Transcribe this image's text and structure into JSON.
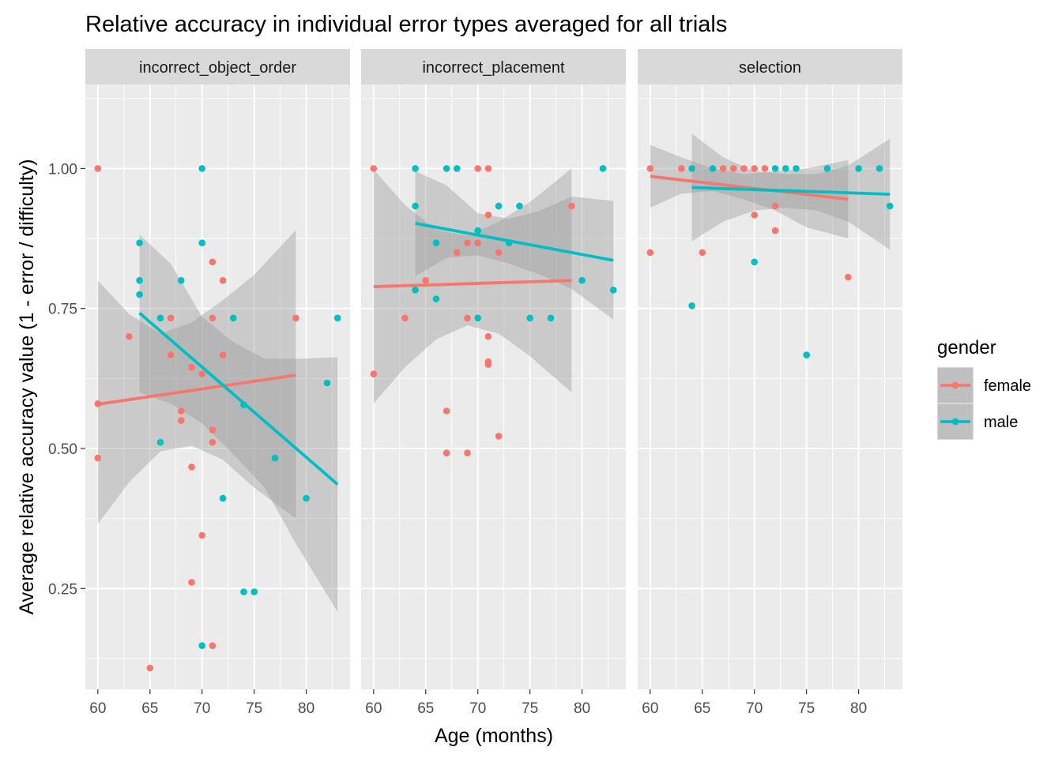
{
  "chart_data": {
    "type": "scatter",
    "title": "Relative accuracy in individual error types averaged for all trials",
    "xlabel": "Age (months)",
    "ylabel": "Average relative accuracy value (1 - error / difficulty)",
    "xlim": [
      58.8,
      84.2
    ],
    "ylim": [
      0.07,
      1.15
    ],
    "xticks": [
      60,
      65,
      70,
      75,
      80
    ],
    "yticks": [
      0.25,
      0.5,
      0.75,
      1.0
    ],
    "ytick_labels": [
      "0.25",
      "0.50",
      "0.75",
      "1.00"
    ],
    "grid": true,
    "legend": {
      "title": "gender",
      "position": "right",
      "items": [
        {
          "name": "female",
          "color": "#F8766D"
        },
        {
          "name": "male",
          "color": "#00BFC4"
        }
      ]
    },
    "colors": {
      "female": "#F8766D",
      "male": "#00BFC4",
      "panel_bg": "#EBEBEB",
      "strip_bg": "#D9D9D9",
      "ribbon": "#999999"
    },
    "facets": [
      {
        "name": "incorrect_object_order",
        "series": [
          {
            "name": "female",
            "points": [
              [
                60,
                1.0
              ],
              [
                60,
                0.58
              ],
              [
                60,
                0.483
              ],
              [
                63,
                0.7
              ],
              [
                65,
                0.108
              ],
              [
                67,
                0.733
              ],
              [
                67,
                0.667
              ],
              [
                68,
                0.567
              ],
              [
                68,
                0.55
              ],
              [
                69,
                0.645
              ],
              [
                69,
                0.467
              ],
              [
                69,
                0.261
              ],
              [
                70,
                0.633
              ],
              [
                70,
                0.345
              ],
              [
                71,
                0.833
              ],
              [
                71,
                0.733
              ],
              [
                71,
                0.533
              ],
              [
                71,
                0.511
              ],
              [
                71,
                0.148
              ],
              [
                72,
                0.8
              ],
              [
                72,
                0.667
              ],
              [
                79,
                0.733
              ]
            ],
            "fit": {
              "x": [
                60,
                79
              ],
              "y": [
                0.579,
                0.631
              ]
            },
            "ci": {
              "x": [
                60,
                63,
                66,
                69,
                72,
                75,
                79
              ],
              "lower": [
                0.365,
                0.44,
                0.495,
                0.505,
                0.48,
                0.43,
                0.375
              ],
              "upper": [
                0.8,
                0.74,
                0.705,
                0.725,
                0.765,
                0.81,
                0.89
              ]
            }
          },
          {
            "name": "male",
            "points": [
              [
                64,
                0.867
              ],
              [
                64,
                0.8
              ],
              [
                64,
                0.775
              ],
              [
                66,
                0.733
              ],
              [
                66,
                0.511
              ],
              [
                68,
                0.8
              ],
              [
                70,
                1.0
              ],
              [
                70,
                0.867
              ],
              [
                70,
                0.148
              ],
              [
                72,
                0.411
              ],
              [
                73,
                0.733
              ],
              [
                74,
                0.578
              ],
              [
                74,
                0.244
              ],
              [
                75,
                0.244
              ],
              [
                77,
                0.483
              ],
              [
                80,
                0.411
              ],
              [
                82,
                0.617
              ],
              [
                83,
                0.733
              ]
            ],
            "fit": {
              "x": [
                64,
                83
              ],
              "y": [
                0.742,
                0.436
              ]
            },
            "ci": {
              "x": [
                64,
                67,
                70,
                73,
                76,
                79,
                83
              ],
              "lower": [
                0.6,
                0.58,
                0.545,
                0.49,
                0.43,
                0.33,
                0.208
              ],
              "upper": [
                0.882,
                0.83,
                0.735,
                0.69,
                0.66,
                0.66,
                0.663
              ]
            }
          }
        ]
      },
      {
        "name": "incorrect_placement",
        "series": [
          {
            "name": "female",
            "points": [
              [
                60,
                1.0
              ],
              [
                60,
                0.633
              ],
              [
                63,
                0.733
              ],
              [
                65,
                0.8
              ],
              [
                67,
                0.567
              ],
              [
                67,
                0.492
              ],
              [
                68,
                0.85
              ],
              [
                69,
                0.867
              ],
              [
                69,
                0.733
              ],
              [
                69,
                0.492
              ],
              [
                70,
                1.0
              ],
              [
                70,
                0.867
              ],
              [
                71,
                1.0
              ],
              [
                71,
                0.917
              ],
              [
                71,
                0.7
              ],
              [
                71,
                0.655
              ],
              [
                71,
                0.65
              ],
              [
                72,
                0.85
              ],
              [
                72,
                0.522
              ],
              [
                79,
                0.933
              ]
            ],
            "fit": {
              "x": [
                60,
                79
              ],
              "y": [
                0.789,
                0.8
              ]
            },
            "ci": {
              "x": [
                60,
                63,
                66,
                69,
                72,
                75,
                79
              ],
              "lower": [
                0.58,
                0.645,
                0.695,
                0.72,
                0.705,
                0.665,
                0.6
              ],
              "upper": [
                0.998,
                0.935,
                0.89,
                0.88,
                0.905,
                0.94,
                1.0
              ]
            }
          },
          {
            "name": "male",
            "points": [
              [
                64,
                1.0
              ],
              [
                64,
                0.933
              ],
              [
                64,
                0.783
              ],
              [
                66,
                0.867
              ],
              [
                66,
                0.767
              ],
              [
                67,
                1.0
              ],
              [
                68,
                1.0
              ],
              [
                70,
                0.889
              ],
              [
                70,
                0.733
              ],
              [
                72,
                0.933
              ],
              [
                73,
                0.867
              ],
              [
                74,
                0.933
              ],
              [
                75,
                0.733
              ],
              [
                77,
                0.733
              ],
              [
                80,
                0.8
              ],
              [
                82,
                1.0
              ],
              [
                83,
                0.783
              ]
            ],
            "fit": {
              "x": [
                64,
                83
              ],
              "y": [
                0.902,
                0.836
              ]
            },
            "ci": {
              "x": [
                64,
                67,
                70,
                73,
                76,
                79,
                83
              ],
              "lower": [
                0.808,
                0.84,
                0.845,
                0.83,
                0.81,
                0.785,
                0.73
              ],
              "upper": [
                0.995,
                0.97,
                0.92,
                0.91,
                0.925,
                0.95,
                0.942
              ]
            }
          }
        ]
      },
      {
        "name": "selection",
        "series": [
          {
            "name": "female",
            "points": [
              [
                60,
                1.0
              ],
              [
                60,
                0.85
              ],
              [
                63,
                1.0
              ],
              [
                65,
                0.85
              ],
              [
                67,
                1.0
              ],
              [
                68,
                1.0
              ],
              [
                69,
                1.0
              ],
              [
                70,
                1.0
              ],
              [
                70,
                0.917
              ],
              [
                71,
                1.0
              ],
              [
                72,
                0.933
              ],
              [
                72,
                0.889
              ],
              [
                79,
                0.806
              ]
            ],
            "fit": {
              "x": [
                60,
                79
              ],
              "y": [
                0.986,
                0.945
              ]
            },
            "ci": {
              "x": [
                60,
                63,
                66,
                69,
                72,
                75,
                79
              ],
              "lower": [
                0.93,
                0.955,
                0.96,
                0.945,
                0.925,
                0.895,
                0.875
              ],
              "upper": [
                1.042,
                1.02,
                1.0,
                0.99,
                0.995,
                1.0,
                1.015
              ]
            }
          },
          {
            "name": "male",
            "points": [
              [
                64,
                1.0
              ],
              [
                64,
                0.755
              ],
              [
                66,
                1.0
              ],
              [
                70,
                0.833
              ],
              [
                72,
                1.0
              ],
              [
                73,
                1.0
              ],
              [
                74,
                1.0
              ],
              [
                75,
                0.667
              ],
              [
                77,
                1.0
              ],
              [
                80,
                1.0
              ],
              [
                82,
                1.0
              ],
              [
                83,
                0.933
              ]
            ],
            "fit": {
              "x": [
                64,
                83
              ],
              "y": [
                0.966,
                0.954
              ]
            },
            "ci": {
              "x": [
                64,
                67,
                70,
                73,
                76,
                79,
                83
              ],
              "lower": [
                0.87,
                0.905,
                0.925,
                0.93,
                0.925,
                0.905,
                0.855
              ],
              "upper": [
                1.062,
                1.02,
                0.995,
                0.99,
                0.99,
                1.005,
                1.053
              ]
            }
          }
        ]
      }
    ]
  }
}
